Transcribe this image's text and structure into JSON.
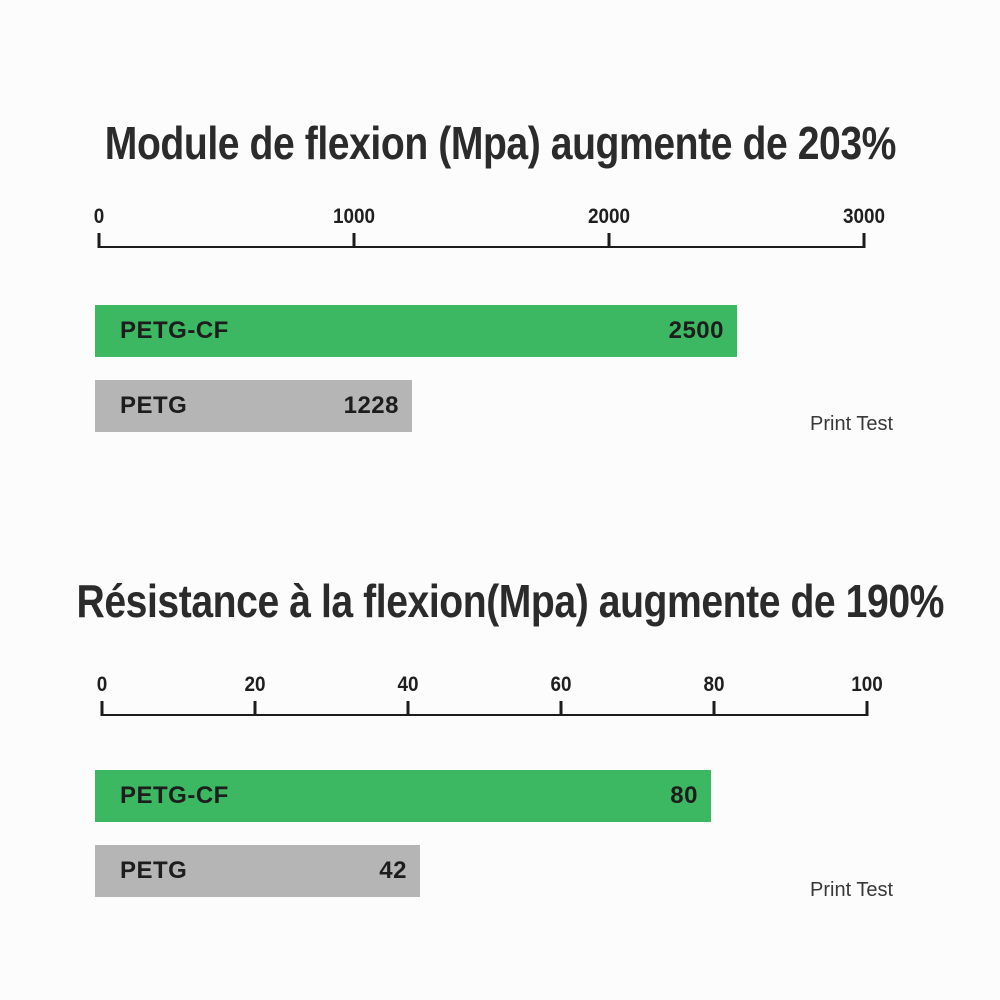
{
  "chart_data": [
    {
      "type": "bar",
      "orientation": "horizontal",
      "title": "Module de flexion (Mpa) augmente de 203%",
      "categories": [
        "PETG-CF",
        "PETG"
      ],
      "values": [
        2500,
        1228
      ],
      "value_labels": [
        "2500",
        "1228"
      ],
      "xlim": [
        0,
        3000
      ],
      "x_ticks": [
        "0",
        "1000",
        "2000",
        "3000"
      ],
      "bar_colors": [
        "#3cb862",
        "#b5b5b5"
      ],
      "annotation": "Print Test",
      "grid": false,
      "legend": "none"
    },
    {
      "type": "bar",
      "orientation": "horizontal",
      "title": "Résistance à la flexion(Mpa) augmente de 190%",
      "categories": [
        "PETG-CF",
        "PETG"
      ],
      "values": [
        80,
        42
      ],
      "value_labels": [
        "80",
        "42"
      ],
      "xlim": [
        0,
        100
      ],
      "x_ticks": [
        "0",
        "20",
        "40",
        "60",
        "80",
        "100"
      ],
      "bar_colors": [
        "#3cb862",
        "#b5b5b5"
      ],
      "annotation": "Print Test",
      "grid": false,
      "legend": "none"
    }
  ],
  "colors": {
    "bar_green": "#3cb862",
    "bar_gray": "#b5b5b5",
    "axis_line": "#1c1c1c",
    "title_text": "#2b2b2b",
    "background": "#fcfcfc"
  }
}
